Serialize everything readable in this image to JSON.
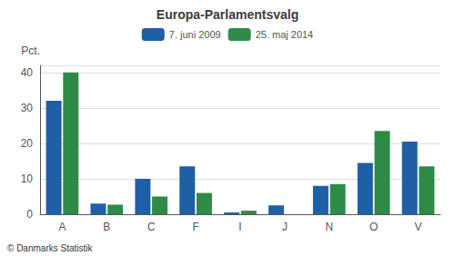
{
  "chart_data": {
    "type": "bar",
    "title": "Europa-Parlamentsvalg",
    "ylabel": "Pct.",
    "categories": [
      "A",
      "B",
      "C",
      "F",
      "I",
      "J",
      "N",
      "O",
      "V"
    ],
    "series": [
      {
        "name": "7. juni 2009",
        "color": "#1f5fa6",
        "values": [
          32,
          3,
          10,
          13.5,
          0.5,
          2.5,
          8,
          14.5,
          20.5
        ]
      },
      {
        "name": "25. maj 2014",
        "color": "#2e8b47",
        "values": [
          40,
          2.7,
          5,
          6,
          1,
          0,
          8.5,
          23.5,
          13.5
        ]
      }
    ],
    "ylim": [
      0,
      42
    ],
    "yticks": [
      0,
      10,
      20,
      30,
      40
    ],
    "grid": true,
    "legend": "top",
    "annotations": [
      "© Danmarks Statistik"
    ]
  }
}
